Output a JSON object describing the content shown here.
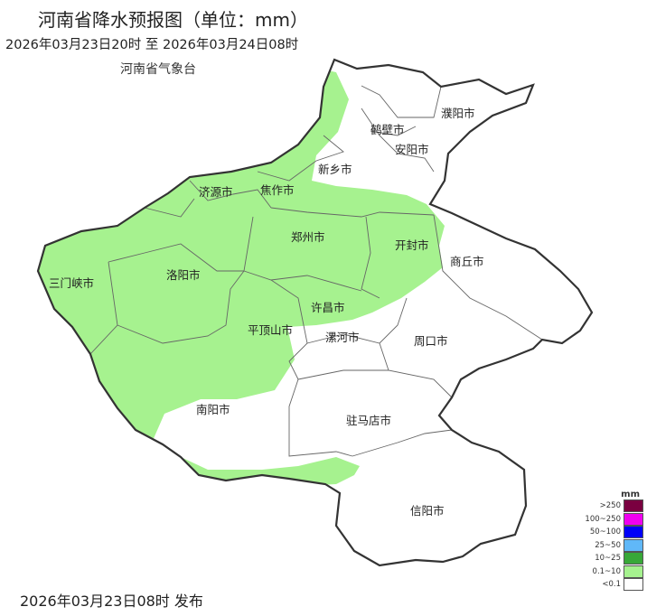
{
  "title": "河南省降水预报图（单位：mm）",
  "period": "2026年03月23日20时  至  2026年03月24日08时",
  "issuer": "河南省气象台",
  "published": "2026年03月23日08时 发布",
  "cities": [
    {
      "name": "濮阳市",
      "rain": "<0.1"
    },
    {
      "name": "鹤壁市",
      "rain": "<0.1"
    },
    {
      "name": "安阳市",
      "rain": "<0.1"
    },
    {
      "name": "新乡市",
      "rain": "0.1~10"
    },
    {
      "name": "济源市",
      "rain": "0.1~10"
    },
    {
      "name": "焦作市",
      "rain": "0.1~10"
    },
    {
      "name": "郑州市",
      "rain": "0.1~10"
    },
    {
      "name": "开封市",
      "rain": "0.1~10"
    },
    {
      "name": "商丘市",
      "rain": "<0.1"
    },
    {
      "name": "三门峡市",
      "rain": "0.1~10"
    },
    {
      "name": "洛阳市",
      "rain": "0.1~10"
    },
    {
      "name": "许昌市",
      "rain": "0.1~10"
    },
    {
      "name": "平顶山市",
      "rain": "0.1~10"
    },
    {
      "name": "漯河市",
      "rain": "<0.1"
    },
    {
      "name": "周口市",
      "rain": "<0.1"
    },
    {
      "name": "南阳市",
      "rain": "0.1~10"
    },
    {
      "name": "驻马店市",
      "rain": "<0.1"
    },
    {
      "name": "信阳市",
      "rain": "<0.1"
    }
  ],
  "legend": {
    "unit": "mm",
    "items": [
      {
        "label": ">250",
        "color": "#7a0040"
      },
      {
        "label": "100~250",
        "color": "#f000f0"
      },
      {
        "label": "50~100",
        "color": "#0000f8"
      },
      {
        "label": "25~50",
        "color": "#60b8f8"
      },
      {
        "label": "10~25",
        "color": "#38a838"
      },
      {
        "label": "0.1~10",
        "color": "#a6f28f"
      },
      {
        "label": "<0.1",
        "color": "#ffffff"
      }
    ]
  }
}
